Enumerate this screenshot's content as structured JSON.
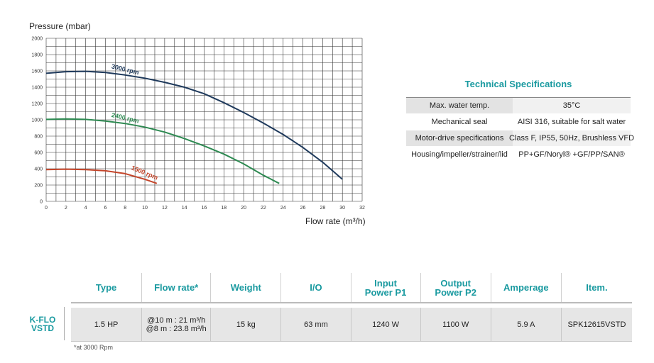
{
  "chart_data": {
    "type": "line",
    "ylabel": "Pressure (mbar)",
    "xlabel": "Flow rate (m³/h)",
    "xlim": [
      0,
      32
    ],
    "ylim": [
      0,
      2000
    ],
    "xticks": [
      "0",
      "2",
      "4",
      "6",
      "8",
      "10",
      "12",
      "14",
      "16",
      "18",
      "20",
      "22",
      "24",
      "26",
      "28",
      "30",
      "32"
    ],
    "yticks": [
      "0",
      "200",
      "400",
      "600",
      "800",
      "1000",
      "1200",
      "1400",
      "1600",
      "1800",
      "2000"
    ],
    "grid": true,
    "series": [
      {
        "name": "3000 rpm",
        "color": "#1f3a5c",
        "x": [
          0,
          2,
          4,
          6,
          8,
          10,
          12,
          14,
          16,
          18,
          20,
          22,
          24,
          26,
          28,
          30
        ],
        "y": [
          1570,
          1590,
          1595,
          1580,
          1550,
          1510,
          1460,
          1400,
          1320,
          1210,
          1090,
          960,
          820,
          660,
          480,
          270
        ]
      },
      {
        "name": "2400 rpm",
        "color": "#2e8a52",
        "x": [
          0,
          2,
          4,
          6,
          8,
          10,
          12,
          14,
          16,
          18,
          20,
          22,
          23.6
        ],
        "y": [
          1005,
          1010,
          1005,
          985,
          955,
          910,
          850,
          770,
          680,
          580,
          460,
          320,
          220
        ]
      },
      {
        "name": "1500 rpm",
        "color": "#c4452a",
        "x": [
          0,
          2,
          4,
          6,
          8,
          10,
          11.2
        ],
        "y": [
          390,
          395,
          390,
          375,
          340,
          270,
          220
        ]
      }
    ]
  },
  "specs": {
    "title": "Technical Specifications",
    "rows": [
      {
        "label": "Max. water temp.",
        "value": "35°C"
      },
      {
        "label": "Mechanical seal",
        "value": "AISI 316, suitable for salt water"
      },
      {
        "label": "Motor-drive specifications",
        "value": "Class F, IP55, 50Hz, Brushless VFD"
      },
      {
        "label": "Housing/impeller/strainer/lid",
        "value": "PP+GF/Noryl® +GF/PP/SAN®"
      }
    ]
  },
  "product_table": {
    "headers": [
      "Type",
      "Flow rate*",
      "Weight",
      "I/O",
      "Input\nPower P1",
      "Output\nPower P2",
      "Amperage",
      "Item."
    ],
    "row": {
      "model_line1": "K-FLO",
      "model_line2": "VSTD",
      "type": "1.5 HP",
      "flow_line1": "@10 m : 21 m³/h",
      "flow_line2": "@8 m : 23.8 m³/h",
      "weight": "15 kg",
      "io": "63 mm",
      "input_power": "1240 W",
      "output_power": "1100 W",
      "amperage": "5.9 A",
      "item": "SPK12615VSTD"
    },
    "footnote": "*at 3000 Rpm"
  }
}
